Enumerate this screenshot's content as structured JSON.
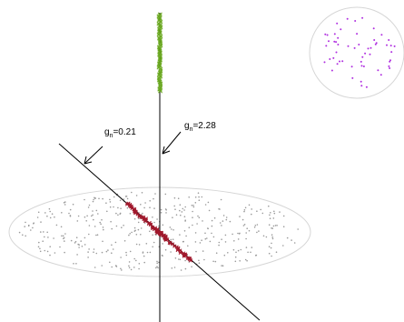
{
  "annotations": [
    {
      "prefix": "g",
      "subscript": "n",
      "value": "=0.21"
    },
    {
      "prefix": "g",
      "subscript": "n",
      "value": "=2.28"
    }
  ],
  "colors": {
    "background": "#ffffff",
    "ellipse_outline": "#d6d6d6",
    "gray_points": "#9a9a9a",
    "green_markers": "#6aa820",
    "red_markers": "#a0182c",
    "purple_points": "#b030e0",
    "lines": "#000000"
  }
}
